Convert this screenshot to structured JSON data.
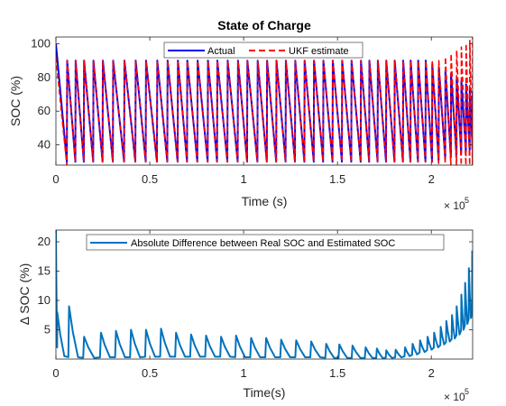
{
  "chart_data": [
    {
      "type": "line",
      "title": "State of Charge",
      "xlabel": "Time (s)",
      "ylabel": "SOC (%)",
      "x_exponent_label": "× 10",
      "x_exponent_power": "5",
      "xlim": [
        0,
        222000
      ],
      "ylim": [
        28,
        104
      ],
      "xticks": [
        0,
        50000,
        100000,
        150000,
        200000
      ],
      "xtick_labels": [
        "0",
        "0.5",
        "1",
        "1.5",
        "2"
      ],
      "yticks": [
        40,
        60,
        80,
        100
      ],
      "ytick_labels": [
        "40",
        "60",
        "80",
        "100"
      ],
      "grid": false,
      "legend_position": "top",
      "cycle_times": [
        0,
        6000,
        10500,
        15000,
        20000,
        25000,
        30500,
        36500,
        42500,
        48000,
        54000,
        59500,
        65000,
        70000,
        75500,
        81000,
        86000,
        91500,
        97000,
        102000,
        107500,
        112500,
        117500,
        122500,
        127500,
        132500,
        137500,
        142500,
        147500,
        152500,
        157500,
        162500,
        167000,
        171500,
        176000,
        180500,
        185000,
        189000,
        193000,
        197000,
        200500,
        204000,
        207500,
        210500,
        213500,
        216000,
        218500,
        220500,
        222000
      ],
      "series": [
        {
          "name": "Actual",
          "color": "#0000ff",
          "style": "solid",
          "peaks": [
            100,
            90,
            90,
            90,
            90,
            90,
            90,
            90,
            90,
            90,
            90,
            90,
            90,
            90,
            90,
            90,
            90,
            90,
            90,
            90,
            90,
            90,
            90,
            90,
            90,
            90,
            90,
            90,
            90,
            90,
            90,
            90,
            90,
            90,
            90,
            90,
            90,
            90,
            90,
            90,
            88,
            86,
            84,
            82,
            80,
            78,
            76,
            74,
            72
          ],
          "troughs": [
            30,
            30,
            30,
            30,
            30,
            30,
            30,
            30,
            30,
            30,
            30,
            30,
            30,
            30,
            30,
            30,
            30,
            30,
            30,
            30,
            30,
            30,
            30,
            30,
            30,
            30,
            30,
            30,
            30,
            30,
            30,
            30,
            30,
            30,
            30,
            30,
            30,
            30,
            30,
            30,
            31,
            32,
            33,
            34,
            35,
            36,
            37,
            38,
            39
          ]
        },
        {
          "name": "UKF estimate",
          "color": "#ff0000",
          "style": "dashed",
          "peaks": [
            92,
            90,
            90,
            90,
            90,
            90,
            90,
            90,
            90,
            90,
            90,
            90,
            90,
            90,
            90,
            90,
            90,
            90,
            90,
            90,
            90,
            90,
            90,
            90,
            90,
            90,
            90,
            90,
            90,
            90,
            90,
            90,
            90,
            90,
            90,
            90,
            90,
            90,
            90,
            90,
            90,
            90,
            92,
            94,
            96,
            98,
            100,
            102,
            104
          ],
          "troughs": [
            28,
            30,
            30,
            30,
            30,
            30,
            30,
            30,
            30,
            30,
            30,
            30,
            30,
            30,
            30,
            30,
            30,
            30,
            30,
            30,
            30,
            30,
            30,
            30,
            30,
            30,
            30,
            30,
            30,
            30,
            30,
            30,
            30,
            30,
            30,
            30,
            30,
            30,
            30,
            30,
            29,
            29,
            28,
            28,
            28,
            28,
            28,
            28,
            28
          ]
        }
      ]
    },
    {
      "type": "line",
      "title": "",
      "xlabel": "Time(s)",
      "ylabel": "Δ SOC (%)",
      "x_exponent_label": "× 10",
      "x_exponent_power": "5",
      "xlim": [
        0,
        222000
      ],
      "ylim": [
        0,
        22
      ],
      "xticks": [
        0,
        50000,
        100000,
        150000,
        200000
      ],
      "xtick_labels": [
        "0",
        "0.5",
        "1",
        "1.5",
        "2"
      ],
      "yticks": [
        5,
        10,
        15,
        20
      ],
      "ytick_labels": [
        "5",
        "10",
        "15",
        "20"
      ],
      "grid": false,
      "legend_position": "top",
      "series": [
        {
          "name": "Absolute Difference between Real SOC and Estimated SOC",
          "color": "#0072bd",
          "spikes": [
            {
              "x": 0,
              "peak": 22.0,
              "base": 8.0
            },
            {
              "x": 700,
              "peak": 8.0,
              "base": 0.5
            },
            {
              "x": 7000,
              "peak": 9.0,
              "base": 0.3
            },
            {
              "x": 15000,
              "peak": 3.8,
              "base": 0.2
            },
            {
              "x": 24000,
              "peak": 4.5,
              "base": 0.3
            },
            {
              "x": 32000,
              "peak": 4.8,
              "base": 0.3
            },
            {
              "x": 40000,
              "peak": 5.0,
              "base": 0.3
            },
            {
              "x": 48000,
              "peak": 5.0,
              "base": 0.4
            },
            {
              "x": 56000,
              "peak": 5.2,
              "base": 0.4
            },
            {
              "x": 64000,
              "peak": 4.5,
              "base": 0.4
            },
            {
              "x": 72000,
              "peak": 4.2,
              "base": 0.4
            },
            {
              "x": 80000,
              "peak": 4.0,
              "base": 0.4
            },
            {
              "x": 88000,
              "peak": 3.8,
              "base": 0.4
            },
            {
              "x": 96000,
              "peak": 4.0,
              "base": 0.3
            },
            {
              "x": 104000,
              "peak": 3.6,
              "base": 0.3
            },
            {
              "x": 112000,
              "peak": 3.6,
              "base": 0.3
            },
            {
              "x": 120000,
              "peak": 3.3,
              "base": 0.3
            },
            {
              "x": 128000,
              "peak": 3.2,
              "base": 0.3
            },
            {
              "x": 136000,
              "peak": 3.0,
              "base": 0.3
            },
            {
              "x": 144000,
              "peak": 2.6,
              "base": 0.2
            },
            {
              "x": 151000,
              "peak": 2.5,
              "base": 0.2
            },
            {
              "x": 158000,
              "peak": 2.3,
              "base": 0.2
            },
            {
              "x": 165000,
              "peak": 2.0,
              "base": 0.2
            },
            {
              "x": 171000,
              "peak": 1.8,
              "base": 0.2
            },
            {
              "x": 176000,
              "peak": 1.5,
              "base": 0.2
            },
            {
              "x": 181000,
              "peak": 1.6,
              "base": 0.3
            },
            {
              "x": 186000,
              "peak": 2.0,
              "base": 0.5
            },
            {
              "x": 190000,
              "peak": 2.6,
              "base": 0.8
            },
            {
              "x": 194000,
              "peak": 3.2,
              "base": 1.2
            },
            {
              "x": 198000,
              "peak": 3.8,
              "base": 1.6
            },
            {
              "x": 201500,
              "peak": 4.5,
              "base": 2.0
            },
            {
              "x": 205000,
              "peak": 5.5,
              "base": 2.5
            },
            {
              "x": 208000,
              "peak": 6.5,
              "base": 3.0
            },
            {
              "x": 211000,
              "peak": 7.5,
              "base": 3.5
            },
            {
              "x": 213500,
              "peak": 9.0,
              "base": 4.2
            },
            {
              "x": 216000,
              "peak": 11.0,
              "base": 5.0
            },
            {
              "x": 218000,
              "peak": 13.0,
              "base": 6.0
            },
            {
              "x": 220000,
              "peak": 15.5,
              "base": 7.0
            },
            {
              "x": 221800,
              "peak": 18.5,
              "base": 8.0
            }
          ]
        }
      ]
    }
  ]
}
